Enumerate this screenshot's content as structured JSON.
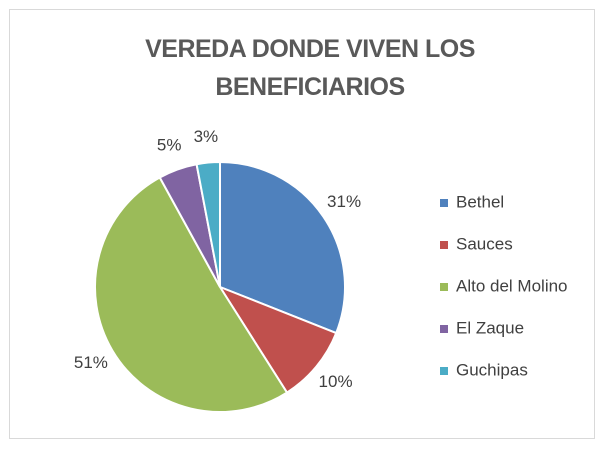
{
  "chart_data": {
    "type": "pie",
    "title": "VEREDA DONDE VIVEN LOS BENEFICIARIOS",
    "categories": [
      "Bethel",
      "Sauces",
      "Alto del Molino",
      "El Zaque",
      "Guchipas"
    ],
    "values": [
      31,
      10,
      51,
      5,
      3
    ],
    "value_labels": [
      "31%",
      "10%",
      "51%",
      "5%",
      "3%"
    ],
    "colors": [
      "#4f81bd",
      "#c0504d",
      "#9bbb59",
      "#8064a2",
      "#4bacc6"
    ],
    "legend": "right"
  }
}
